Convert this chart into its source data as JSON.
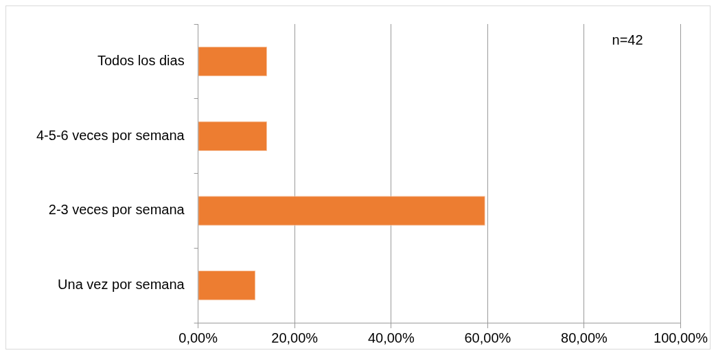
{
  "chart_data": {
    "type": "bar",
    "orientation": "horizontal",
    "categories": [
      "Todos los dias",
      "4-5-6 veces por semana",
      "2-3 veces por semana",
      "Una vez por semana"
    ],
    "values": [
      14.3,
      14.3,
      59.5,
      11.9
    ],
    "color": "#ed7d31",
    "xlim": [
      0,
      100
    ],
    "xticks": [
      {
        "value": 0,
        "label": "0,00%"
      },
      {
        "value": 20,
        "label": "20,00%"
      },
      {
        "value": 40,
        "label": "40,00%"
      },
      {
        "value": 60,
        "label": "60,00%"
      },
      {
        "value": 80,
        "label": "80,00%"
      },
      {
        "value": 100,
        "label": "100,00%"
      }
    ],
    "grid": "x",
    "legend": false,
    "annotations": [
      "n=42"
    ]
  }
}
